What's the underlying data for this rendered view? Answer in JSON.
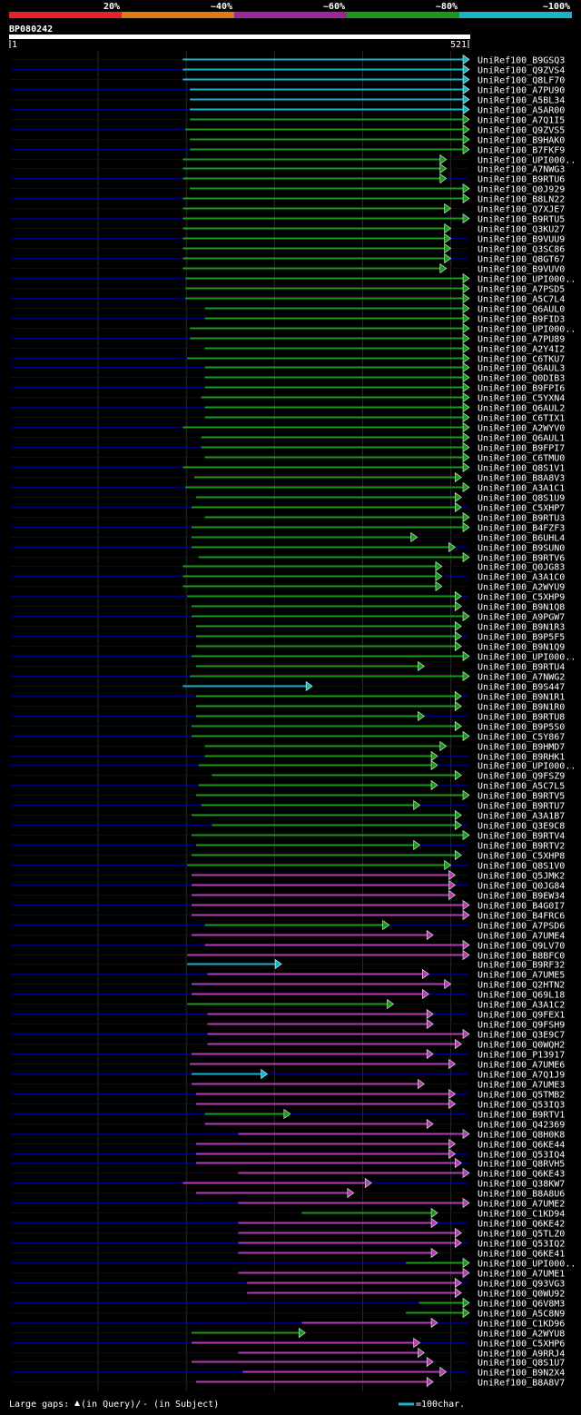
{
  "query": {
    "id": "BP080242",
    "start": "1",
    "end": "521",
    "length": 521
  },
  "scale": {
    "labels": [
      "20%",
      "~40%",
      "~60%",
      "~80%",
      "~100%"
    ],
    "colors": [
      "#e8202a",
      "#e07a10",
      "#a0259a",
      "#1a9a1a",
      "#1ab4c8"
    ]
  },
  "colors": {
    "cyan": "#1ab4c8",
    "green": "#1a9a1a",
    "magenta": "#b73bb6",
    "query_line": "#000080",
    "grid": "#2a2a2a",
    "tick": "#ffffff"
  },
  "legend": {
    "gaps_label": "Large gaps:",
    "in_query": "(in Query)/",
    "in_subject": "- (in Subject)",
    "scale_text": "=100char."
  },
  "hits": [
    {
      "name": "UniRef100_B9GSQ3",
      "color": "cyan",
      "s": 197,
      "e": 521
    },
    {
      "name": "UniRef100_Q9ZVS4",
      "color": "cyan",
      "s": 197,
      "e": 521
    },
    {
      "name": "UniRef100_Q8LF70",
      "color": "cyan",
      "s": 197,
      "e": 521
    },
    {
      "name": "UniRef100_A7PU90",
      "color": "cyan",
      "s": 205,
      "e": 521
    },
    {
      "name": "UniRef100_A5BL34",
      "color": "cyan",
      "s": 205,
      "e": 521
    },
    {
      "name": "UniRef100_A5AR00",
      "color": "cyan",
      "s": 205,
      "e": 521
    },
    {
      "name": "UniRef100_A7Q1I5",
      "color": "green",
      "s": 205,
      "e": 521
    },
    {
      "name": "UniRef100_Q9ZVS5",
      "color": "green",
      "s": 200,
      "e": 521
    },
    {
      "name": "UniRef100_B9HAK0",
      "color": "green",
      "s": 205,
      "e": 521
    },
    {
      "name": "UniRef100_B7FKF9",
      "color": "green",
      "s": 205,
      "e": 521
    },
    {
      "name": "UniRef100_UPI000..",
      "color": "green",
      "s": 197,
      "e": 495
    },
    {
      "name": "UniRef100_A7NWG3",
      "color": "green",
      "s": 197,
      "e": 495
    },
    {
      "name": "UniRef100_B9RTU6",
      "color": "green",
      "s": 197,
      "e": 495
    },
    {
      "name": "UniRef100_Q0J929",
      "color": "green",
      "s": 205,
      "e": 521
    },
    {
      "name": "UniRef100_B8LN22",
      "color": "green",
      "s": 197,
      "e": 521
    },
    {
      "name": "UniRef100_Q7XJE7",
      "color": "green",
      "s": 197,
      "e": 500
    },
    {
      "name": "UniRef100_B9RTU5",
      "color": "green",
      "s": 197,
      "e": 521
    },
    {
      "name": "UniRef100_Q3KU27",
      "color": "green",
      "s": 197,
      "e": 500
    },
    {
      "name": "UniRef100_B9VUU9",
      "color": "green",
      "s": 197,
      "e": 500
    },
    {
      "name": "UniRef100_Q3SC86",
      "color": "green",
      "s": 197,
      "e": 500
    },
    {
      "name": "UniRef100_Q8GT67",
      "color": "green",
      "s": 197,
      "e": 500
    },
    {
      "name": "UniRef100_B9VUV0",
      "color": "green",
      "s": 197,
      "e": 495
    },
    {
      "name": "UniRef100_UPI000..",
      "color": "green",
      "s": 200,
      "e": 521
    },
    {
      "name": "UniRef100_A7PSD5",
      "color": "green",
      "s": 200,
      "e": 521
    },
    {
      "name": "UniRef100_A5C7L4",
      "color": "green",
      "s": 200,
      "e": 521
    },
    {
      "name": "UniRef100_Q6AUL0",
      "color": "green",
      "s": 222,
      "e": 521
    },
    {
      "name": "UniRef100_B9FID3",
      "color": "green",
      "s": 222,
      "e": 521
    },
    {
      "name": "UniRef100_UPI000..",
      "color": "green",
      "s": 205,
      "e": 521
    },
    {
      "name": "UniRef100_A7PU89",
      "color": "green",
      "s": 205,
      "e": 521
    },
    {
      "name": "UniRef100_A2Y4I2",
      "color": "green",
      "s": 222,
      "e": 521
    },
    {
      "name": "UniRef100_C6TKU7",
      "color": "green",
      "s": 202,
      "e": 521
    },
    {
      "name": "UniRef100_Q6AUL3",
      "color": "green",
      "s": 222,
      "e": 521
    },
    {
      "name": "UniRef100_Q0DIB3",
      "color": "green",
      "s": 222,
      "e": 521
    },
    {
      "name": "UniRef100_B9FPI6",
      "color": "green",
      "s": 222,
      "e": 521
    },
    {
      "name": "UniRef100_C5YXN4",
      "color": "green",
      "s": 218,
      "e": 521
    },
    {
      "name": "UniRef100_Q6AUL2",
      "color": "green",
      "s": 222,
      "e": 521
    },
    {
      "name": "UniRef100_C6TIX1",
      "color": "green",
      "s": 222,
      "e": 521
    },
    {
      "name": "UniRef100_A2WYV0",
      "color": "green",
      "s": 197,
      "e": 521
    },
    {
      "name": "UniRef100_Q6AUL1",
      "color": "green",
      "s": 218,
      "e": 521
    },
    {
      "name": "UniRef100_B9FPI7",
      "color": "green",
      "s": 218,
      "e": 521
    },
    {
      "name": "UniRef100_C6TMU0",
      "color": "green",
      "s": 222,
      "e": 521
    },
    {
      "name": "UniRef100_Q8S1V1",
      "color": "green",
      "s": 197,
      "e": 521
    },
    {
      "name": "UniRef100_B8A8V3",
      "color": "green",
      "s": 210,
      "e": 512
    },
    {
      "name": "UniRef100_A3A1C1",
      "color": "green",
      "s": 200,
      "e": 521
    },
    {
      "name": "UniRef100_Q8S1U9",
      "color": "green",
      "s": 212,
      "e": 512
    },
    {
      "name": "UniRef100_C5XHP7",
      "color": "green",
      "s": 207,
      "e": 512
    },
    {
      "name": "UniRef100_B9RTU3",
      "color": "green",
      "s": 222,
      "e": 521
    },
    {
      "name": "UniRef100_B4FZF3",
      "color": "green",
      "s": 207,
      "e": 521
    },
    {
      "name": "UniRef100_B6UHL4",
      "color": "green",
      "s": 207,
      "e": 462
    },
    {
      "name": "UniRef100_B9SUN0",
      "color": "green",
      "s": 207,
      "e": 505
    },
    {
      "name": "UniRef100_B9RTV6",
      "color": "green",
      "s": 215,
      "e": 521
    },
    {
      "name": "UniRef100_Q0JG83",
      "color": "green",
      "s": 197,
      "e": 490
    },
    {
      "name": "UniRef100_A3A1C0",
      "color": "green",
      "s": 197,
      "e": 490
    },
    {
      "name": "UniRef100_A2WYU9",
      "color": "green",
      "s": 197,
      "e": 490
    },
    {
      "name": "UniRef100_C5XHP9",
      "color": "green",
      "s": 202,
      "e": 512
    },
    {
      "name": "UniRef100_B9N1Q8",
      "color": "green",
      "s": 207,
      "e": 512
    },
    {
      "name": "UniRef100_A9PGW7",
      "color": "green",
      "s": 207,
      "e": 521
    },
    {
      "name": "UniRef100_B9N1R3",
      "color": "green",
      "s": 212,
      "e": 512
    },
    {
      "name": "UniRef100_B9P5F5",
      "color": "green",
      "s": 212,
      "e": 512
    },
    {
      "name": "UniRef100_B9N1Q9",
      "color": "green",
      "s": 212,
      "e": 512
    },
    {
      "name": "UniRef100_UPI000..",
      "color": "green",
      "s": 207,
      "e": 521
    },
    {
      "name": "UniRef100_B9RTU4",
      "color": "green",
      "s": 212,
      "e": 470
    },
    {
      "name": "UniRef100_A7NWG2",
      "color": "green",
      "s": 205,
      "e": 521
    },
    {
      "name": "UniRef100_B9S447",
      "color": "cyan",
      "s": 197,
      "e": 343
    },
    {
      "name": "UniRef100_B9N1R1",
      "color": "green",
      "s": 212,
      "e": 512
    },
    {
      "name": "UniRef100_B9N1R0",
      "color": "green",
      "s": 212,
      "e": 512
    },
    {
      "name": "UniRef100_B9RTU8",
      "color": "green",
      "s": 212,
      "e": 470
    },
    {
      "name": "UniRef100_B9P5S0",
      "color": "green",
      "s": 207,
      "e": 512
    },
    {
      "name": "UniRef100_C5Y867",
      "color": "green",
      "s": 207,
      "e": 521
    },
    {
      "name": "UniRef100_B9HMD7",
      "color": "green",
      "s": 222,
      "e": 495
    },
    {
      "name": "UniRef100_B9RHK1",
      "color": "green",
      "s": 222,
      "e": 485
    },
    {
      "name": "UniRef100_UPI000..",
      "color": "green",
      "s": 215,
      "e": 485
    },
    {
      "name": "UniRef100_Q9FSZ9",
      "color": "green",
      "s": 230,
      "e": 512
    },
    {
      "name": "UniRef100_A5C7L5",
      "color": "green",
      "s": 215,
      "e": 485
    },
    {
      "name": "UniRef100_B9RTV5",
      "color": "green",
      "s": 212,
      "e": 521
    },
    {
      "name": "UniRef100_B9RTU7",
      "color": "green",
      "s": 218,
      "e": 465
    },
    {
      "name": "UniRef100_A3A1B7",
      "color": "green",
      "s": 207,
      "e": 512
    },
    {
      "name": "UniRef100_Q3E9C8",
      "color": "green",
      "s": 230,
      "e": 512
    },
    {
      "name": "UniRef100_B9RTV4",
      "color": "green",
      "s": 207,
      "e": 521
    },
    {
      "name": "UniRef100_B9RTV2",
      "color": "green",
      "s": 212,
      "e": 465
    },
    {
      "name": "UniRef100_C5XHP8",
      "color": "green",
      "s": 207,
      "e": 512
    },
    {
      "name": "UniRef100_Q8S1V0",
      "color": "green",
      "s": 202,
      "e": 500
    },
    {
      "name": "UniRef100_Q5JMK2",
      "color": "magenta",
      "s": 207,
      "e": 505
    },
    {
      "name": "UniRef100_Q0JG84",
      "color": "magenta",
      "s": 207,
      "e": 505
    },
    {
      "name": "UniRef100_B9EW34",
      "color": "magenta",
      "s": 207,
      "e": 505
    },
    {
      "name": "UniRef100_B4G0I7",
      "color": "magenta",
      "s": 207,
      "e": 521
    },
    {
      "name": "UniRef100_B4FRC6",
      "color": "magenta",
      "s": 207,
      "e": 521
    },
    {
      "name": "UniRef100_A7PSD6",
      "color": "green",
      "s": 222,
      "e": 430
    },
    {
      "name": "UniRef100_A7UME4",
      "color": "magenta",
      "s": 207,
      "e": 480
    },
    {
      "name": "UniRef100_Q9LV70",
      "color": "magenta",
      "s": 222,
      "e": 521
    },
    {
      "name": "UniRef100_B8BFC0",
      "color": "magenta",
      "s": 202,
      "e": 521
    },
    {
      "name": "UniRef100_B9RF32",
      "color": "cyan",
      "s": 202,
      "e": 308
    },
    {
      "name": "UniRef100_A7UME5",
      "color": "magenta",
      "s": 225,
      "e": 475
    },
    {
      "name": "UniRef100_Q2HTN2",
      "color": "magenta",
      "s": 207,
      "e": 500
    },
    {
      "name": "UniRef100_Q69L18",
      "color": "magenta",
      "s": 207,
      "e": 475
    },
    {
      "name": "UniRef100_A3A1C2",
      "color": "green",
      "s": 202,
      "e": 435
    },
    {
      "name": "UniRef100_Q9FEX1",
      "color": "magenta",
      "s": 225,
      "e": 480
    },
    {
      "name": "UniRef100_Q9FSH9",
      "color": "magenta",
      "s": 225,
      "e": 480
    },
    {
      "name": "UniRef100_Q3E9C7",
      "color": "magenta",
      "s": 225,
      "e": 521
    },
    {
      "name": "UniRef100_Q0WQH2",
      "color": "magenta",
      "s": 225,
      "e": 512
    },
    {
      "name": "UniRef100_P13917",
      "color": "magenta",
      "s": 207,
      "e": 480
    },
    {
      "name": "UniRef100_A7UME6",
      "color": "magenta",
      "s": 205,
      "e": 505
    },
    {
      "name": "UniRef100_A7Q1J9",
      "color": "cyan",
      "s": 207,
      "e": 292
    },
    {
      "name": "UniRef100_A7UME3",
      "color": "magenta",
      "s": 207,
      "e": 470
    },
    {
      "name": "UniRef100_Q5TMB2",
      "color": "magenta",
      "s": 212,
      "e": 505
    },
    {
      "name": "UniRef100_Q53IQ3",
      "color": "magenta",
      "s": 212,
      "e": 505
    },
    {
      "name": "UniRef100_B9RTV1",
      "color": "green",
      "s": 222,
      "e": 318
    },
    {
      "name": "UniRef100_Q42369",
      "color": "magenta",
      "s": 222,
      "e": 480
    },
    {
      "name": "UniRef100_Q8H0K8",
      "color": "magenta",
      "s": 260,
      "e": 521
    },
    {
      "name": "UniRef100_Q6KE44",
      "color": "magenta",
      "s": 212,
      "e": 505
    },
    {
      "name": "UniRef100_Q53IQ4",
      "color": "magenta",
      "s": 212,
      "e": 505
    },
    {
      "name": "UniRef100_Q8RVH5",
      "color": "magenta",
      "s": 212,
      "e": 512
    },
    {
      "name": "UniRef100_Q6KE43",
      "color": "magenta",
      "s": 260,
      "e": 521
    },
    {
      "name": "UniRef100_Q38KW7",
      "color": "magenta",
      "s": 197,
      "e": 410
    },
    {
      "name": "UniRef100_B8A8U6",
      "color": "magenta",
      "s": 212,
      "e": 390
    },
    {
      "name": "UniRef100_A7UME2",
      "color": "magenta",
      "s": 260,
      "e": 521
    },
    {
      "name": "UniRef100_C1KD94",
      "color": "green",
      "s": 332,
      "e": 485
    },
    {
      "name": "UniRef100_Q6KE42",
      "color": "magenta",
      "s": 260,
      "e": 485
    },
    {
      "name": "UniRef100_Q5TLZ0",
      "color": "magenta",
      "s": 260,
      "e": 512
    },
    {
      "name": "UniRef100_Q53IQ2",
      "color": "magenta",
      "s": 260,
      "e": 512
    },
    {
      "name": "UniRef100_Q6KE41",
      "color": "magenta",
      "s": 260,
      "e": 485
    },
    {
      "name": "UniRef100_UPI000..",
      "color": "green",
      "s": 450,
      "e": 521
    },
    {
      "name": "UniRef100_A7UME1",
      "color": "magenta",
      "s": 260,
      "e": 521
    },
    {
      "name": "UniRef100_Q93VG3",
      "color": "magenta",
      "s": 270,
      "e": 512
    },
    {
      "name": "UniRef100_Q0WU92",
      "color": "magenta",
      "s": 270,
      "e": 512
    },
    {
      "name": "UniRef100_Q6V8M3",
      "color": "green",
      "s": 465,
      "e": 521
    },
    {
      "name": "UniRef100_A5C8N9",
      "color": "green",
      "s": 450,
      "e": 521
    },
    {
      "name": "UniRef100_C1KD96",
      "color": "magenta",
      "s": 332,
      "e": 485
    },
    {
      "name": "UniRef100_A2WYU8",
      "color": "green",
      "s": 207,
      "e": 335
    },
    {
      "name": "UniRef100_C5XHP6",
      "color": "magenta",
      "s": 207,
      "e": 465
    },
    {
      "name": "UniRef100_A9RRJ4",
      "color": "magenta",
      "s": 260,
      "e": 470
    },
    {
      "name": "UniRef100_Q8S1U7",
      "color": "magenta",
      "s": 207,
      "e": 480
    },
    {
      "name": "UniRef100_B9N2X4",
      "color": "magenta",
      "s": 265,
      "e": 495
    },
    {
      "name": "UniRef100_B8A8V7",
      "color": "magenta",
      "s": 212,
      "e": 480
    }
  ]
}
